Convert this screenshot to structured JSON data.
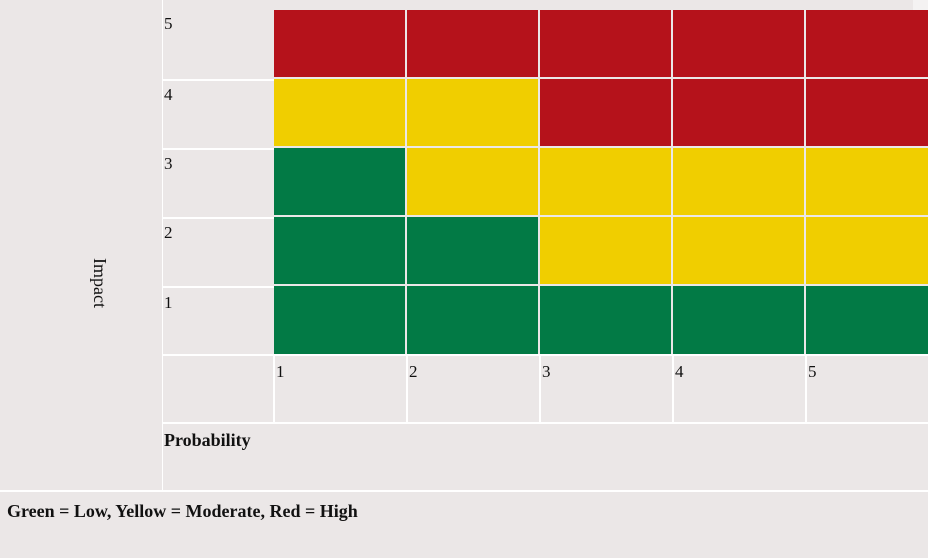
{
  "chart_data": {
    "type": "heatmap",
    "xlabel": "Probability",
    "ylabel": "Impact",
    "x_categories": [
      "1",
      "2",
      "3",
      "4",
      "5"
    ],
    "y_categories": [
      "1",
      "2",
      "3",
      "4",
      "5"
    ],
    "cells": [
      [
        "Low",
        "Low",
        "Low",
        "Low",
        "Low"
      ],
      [
        "Low",
        "Low",
        "Moderate",
        "Moderate",
        "Moderate"
      ],
      [
        "Low",
        "Moderate",
        "Moderate",
        "Moderate",
        "Moderate"
      ],
      [
        "Moderate",
        "Moderate",
        "High",
        "High",
        "High"
      ],
      [
        "High",
        "High",
        "High",
        "High",
        "High"
      ]
    ],
    "colors": {
      "Low": "#027a45",
      "Moderate": "#f0ce00",
      "High": "#b5121b"
    },
    "legend_text": "Green = Low, Yellow = Moderate, Red = High"
  }
}
